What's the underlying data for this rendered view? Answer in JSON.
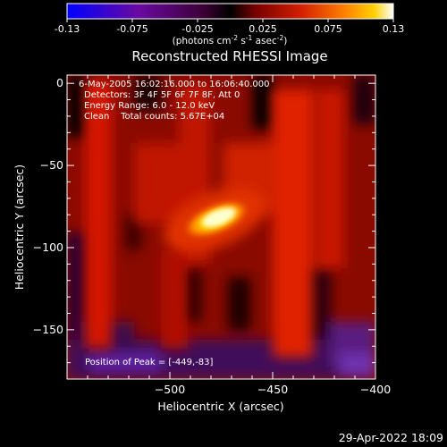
{
  "colorbar": {
    "ticks": [
      "-0.13",
      "-0.075",
      "-0.025",
      "0.025",
      "0.075",
      "0.13"
    ],
    "unit_label_main": "(photons cm",
    "unit_sup1": "-2",
    "unit_mid": " s",
    "unit_sup2": "-1",
    "unit_mid2": " asec",
    "unit_sup3": "-2",
    "unit_end": ")"
  },
  "chart_data": {
    "type": "heatmap",
    "title": "Reconstructed RHESSI Image",
    "xlabel": "Heliocentric X (arcsec)",
    "ylabel": "Heliocentric Y (arcsec)",
    "xlim": [
      -550,
      -400
    ],
    "ylim": [
      -180,
      5
    ],
    "xticks": [
      -500,
      -450,
      -400
    ],
    "yticks": [
      0,
      -50,
      -100,
      -150
    ],
    "x_tick_labels": [
      "−500",
      "−450",
      "−400"
    ],
    "y_tick_labels": [
      "0",
      "−50",
      "−100",
      "−150"
    ],
    "colormap": "hot (blue-purple-red-orange-yellow-white)",
    "color_range": [
      -0.13,
      0.13
    ],
    "peak": {
      "x": -449,
      "y": -83
    },
    "annotations": {
      "time": "6-May-2005 16:02:16.000 to 16:06:40.000",
      "detectors": "Detectors: 3F 4F 5F 6F 7F 8F, Att 0",
      "energy": "Energy Range: 6.0 - 12.0 keV",
      "clean": "Clean    Total counts: 5.67E+04",
      "peak_text": "Position of Peak = [-449,-83]"
    }
  },
  "footer": {
    "date": "29-Apr-2022 18:09"
  },
  "colors": {
    "background": "#000000",
    "foreground": "#ffffff",
    "colorbar_stops": [
      "#0000ff",
      "#6a0aa0",
      "#3a0040",
      "#000000",
      "#7a0000",
      "#d42000",
      "#ff8000",
      "#ffd000",
      "#ffffff"
    ]
  }
}
